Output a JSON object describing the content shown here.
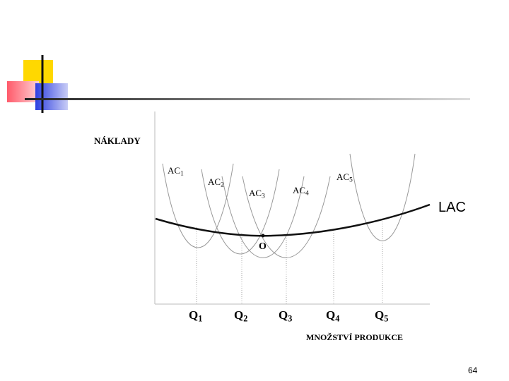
{
  "diagram": {
    "y_axis_label": "NÁKLADY",
    "x_axis_label": "MNOŽSTVÍ PRODUKCE",
    "curves": [
      {
        "name": "AC",
        "index": "1"
      },
      {
        "name": "AC",
        "index": "2"
      },
      {
        "name": "AC",
        "index": "3"
      },
      {
        "name": "AC",
        "index": "4"
      },
      {
        "name": "AC",
        "index": "5"
      }
    ],
    "envelope_label": "LAC",
    "optimum_label": "O",
    "quantities": [
      {
        "name": "Q",
        "index": "1"
      },
      {
        "name": "Q",
        "index": "2"
      },
      {
        "name": "Q",
        "index": "3"
      },
      {
        "name": "Q",
        "index": "4"
      },
      {
        "name": "Q",
        "index": "5"
      }
    ]
  },
  "footer": {
    "page_number": "64"
  }
}
